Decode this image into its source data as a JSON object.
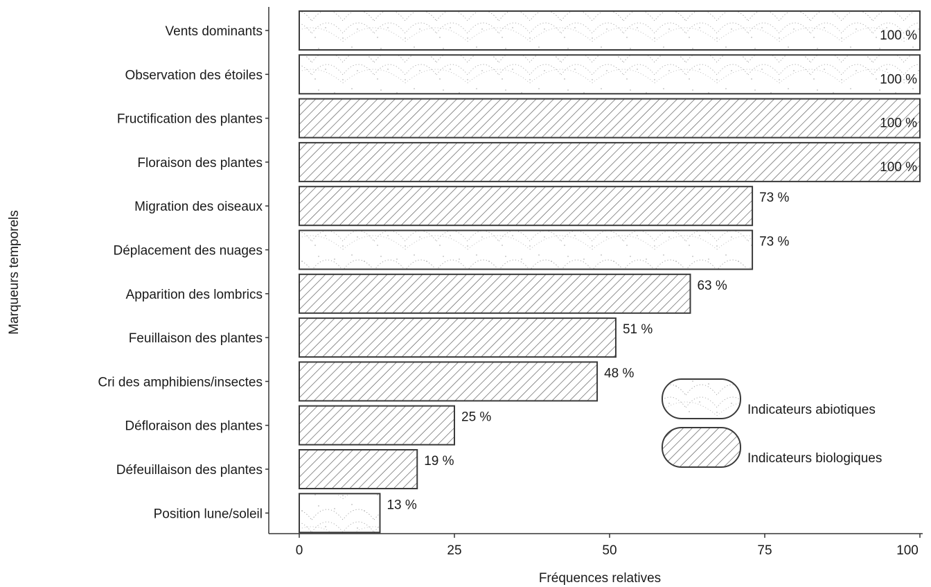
{
  "chart_data": {
    "type": "bar",
    "orientation": "horizontal",
    "xlabel": "Fréquences relatives",
    "ylabel": "Marqueurs temporels",
    "xlim": [
      0,
      100
    ],
    "xticks": [
      0,
      25,
      50,
      75,
      100
    ],
    "grid": false,
    "legend_position": "right",
    "categories": [
      "Vents dominants",
      "Observation des étoiles",
      "Fructification des plantes",
      "Floraison des plantes",
      "Migration des oiseaux",
      "Déplacement des nuages",
      "Apparition des lombrics",
      "Feuillaison des plantes",
      "Cri des amphibiens/insectes",
      "Défloraison des plantes",
      "Défeuillaison des plantes",
      "Position lune/soleil"
    ],
    "values": [
      100,
      100,
      100,
      100,
      73,
      73,
      63,
      51,
      48,
      25,
      19,
      13
    ],
    "value_labels": [
      "100 %",
      "100 %",
      "100 %",
      "100 %",
      "73 %",
      "73 %",
      "63 %",
      "51 %",
      "48 %",
      "25 %",
      "19 %",
      "13 %"
    ],
    "groups": [
      "abiotic",
      "abiotic",
      "biologic",
      "biologic",
      "biologic",
      "abiotic",
      "biologic",
      "biologic",
      "biologic",
      "biologic",
      "biologic",
      "abiotic"
    ],
    "legend": [
      {
        "key": "abiotic",
        "label": "Indicateurs abiotiques",
        "pattern": "stipple"
      },
      {
        "key": "biologic",
        "label": "Indicateurs biologiques",
        "pattern": "hatch"
      }
    ],
    "colors": {
      "stroke": "#3a3a3a",
      "pattern": "#555555",
      "fill": "#ffffff"
    }
  }
}
